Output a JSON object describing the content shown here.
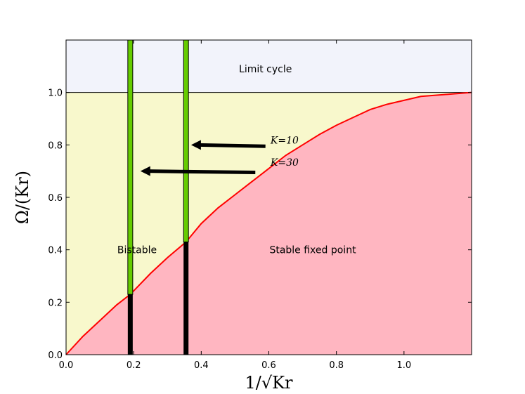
{
  "chart_data": {
    "type": "area",
    "xlabel": "1/√Kr",
    "ylabel": "Ω/(Kr)",
    "xlim": [
      0.0,
      1.2
    ],
    "ylim": [
      0.0,
      1.2
    ],
    "x_ticks": [
      "0.0",
      "0.2",
      "0.4",
      "0.6",
      "0.8",
      "1.0"
    ],
    "y_ticks": [
      "0.0",
      "0.2",
      "0.4",
      "0.6",
      "0.8",
      "1.0"
    ],
    "grid": false,
    "boundary_curve": {
      "color": "#ff0000",
      "x": [
        0.0,
        0.05,
        0.1,
        0.15,
        0.19,
        0.25,
        0.3,
        0.355,
        0.4,
        0.45,
        0.5,
        0.55,
        0.6,
        0.65,
        0.7,
        0.75,
        0.8,
        0.85,
        0.9,
        0.95,
        1.0,
        1.05,
        1.1,
        1.15,
        1.2
      ],
      "y": [
        0.0,
        0.07,
        0.13,
        0.19,
        0.23,
        0.31,
        0.37,
        0.43,
        0.5,
        0.56,
        0.61,
        0.66,
        0.71,
        0.76,
        0.8,
        0.84,
        0.875,
        0.905,
        0.935,
        0.955,
        0.97,
        0.985,
        0.99,
        0.995,
        1.0
      ]
    },
    "limit_cycle_threshold": 1.0,
    "regions": [
      {
        "label": "Limit cycle",
        "color": "#f2f3fb",
        "label_x": 0.59,
        "label_y": 1.09
      },
      {
        "label": "Bistable",
        "color": "#f8f8cc",
        "label_x": 0.21,
        "label_y": 0.4
      },
      {
        "label": "Stable fixed point",
        "color": "#ffb6c1",
        "label_x": 0.73,
        "label_y": 0.4
      }
    ],
    "vertical_markers": [
      {
        "x": 0.19,
        "y_cross": 0.23,
        "green": "#66cc00",
        "black": "#000000"
      },
      {
        "x": 0.355,
        "y_cross": 0.43,
        "green": "#66cc00",
        "black": "#000000"
      }
    ],
    "arrows": [
      {
        "label": "K=10",
        "label_x": 0.605,
        "label_y": 0.805,
        "from": [
          0.59,
          0.795
        ],
        "to": [
          0.37,
          0.8
        ]
      },
      {
        "label": "K=30",
        "label_x": 0.605,
        "label_y": 0.72,
        "from": [
          0.56,
          0.695
        ],
        "to": [
          0.22,
          0.7
        ]
      }
    ]
  }
}
